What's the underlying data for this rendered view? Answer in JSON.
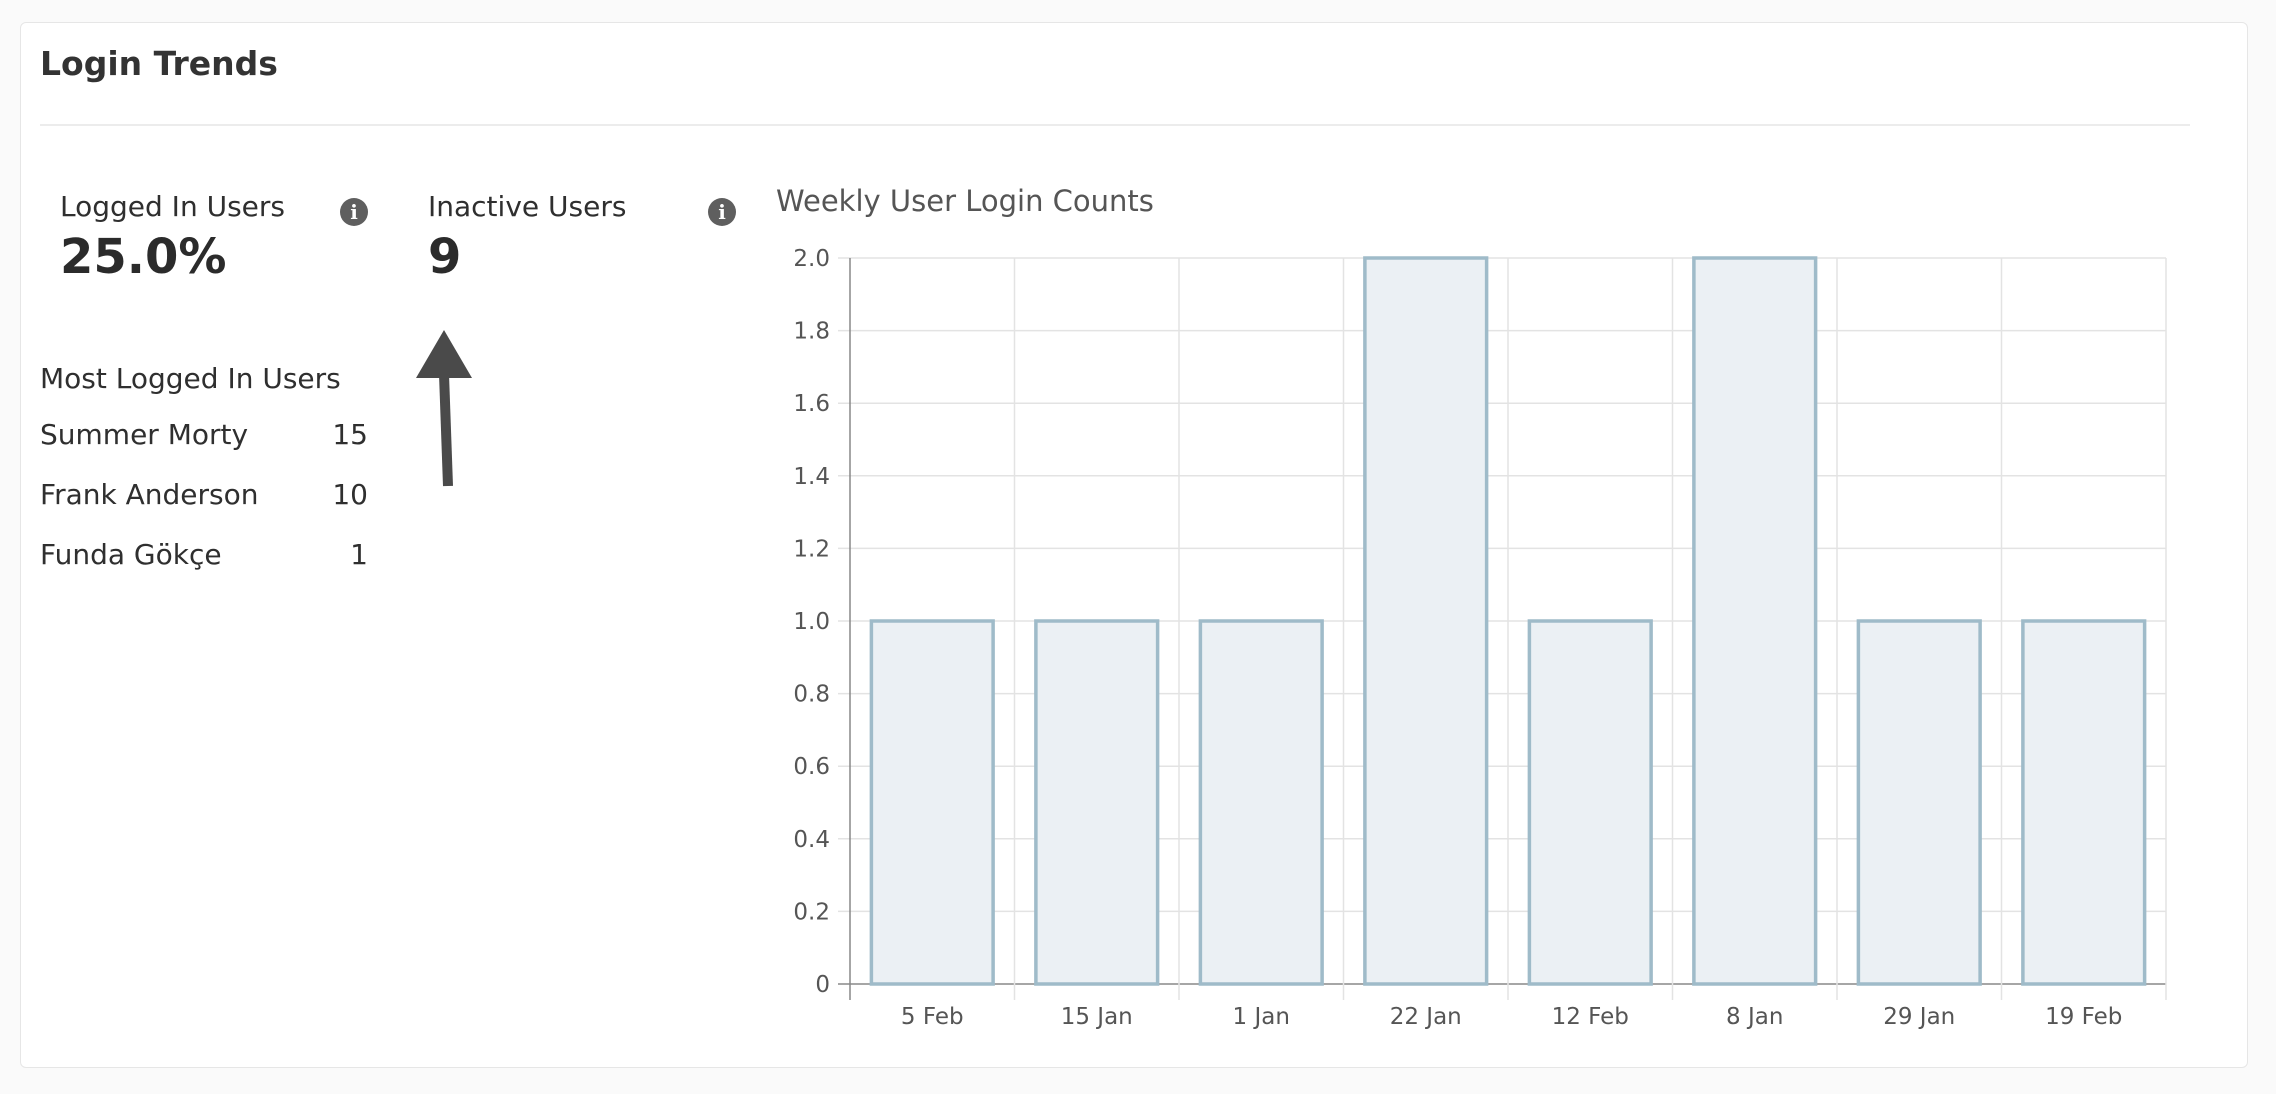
{
  "card": {
    "title": "Login Trends"
  },
  "stats": {
    "logged_in": {
      "label": "Logged In Users",
      "value": "25.0%"
    },
    "inactive": {
      "label": "Inactive Users",
      "value": "9"
    }
  },
  "most_logged": {
    "title": "Most Logged In Users",
    "users": [
      {
        "name": "Summer Morty",
        "count": "15"
      },
      {
        "name": "Frank Anderson",
        "count": "10"
      },
      {
        "name": "Funda Gökçe",
        "count": "1"
      }
    ]
  },
  "icons": {
    "info": "info-icon",
    "annotation": "arrow-up-icon"
  },
  "colors": {
    "bar_fill": "#ebf0f4",
    "bar_stroke": "#9fbbc9",
    "grid": "#e3e3e3",
    "axis": "#888888",
    "tick_text": "#555555",
    "arrow": "#4a4a4a"
  },
  "chart_data": {
    "type": "bar",
    "title": "Weekly User Login Counts",
    "categories": [
      "5 Feb",
      "15 Jan",
      "1 Jan",
      "22 Jan",
      "12 Feb",
      "8 Jan",
      "29 Jan",
      "19 Feb"
    ],
    "values": [
      1,
      1,
      1,
      2,
      1,
      2,
      1,
      1
    ],
    "ylim": [
      0,
      2.0
    ],
    "yticks": [
      "0",
      "0.2",
      "0.4",
      "0.6",
      "0.8",
      "1.0",
      "1.2",
      "1.4",
      "1.6",
      "1.8",
      "2.0"
    ],
    "grid": true,
    "xlabel": "",
    "ylabel": ""
  }
}
